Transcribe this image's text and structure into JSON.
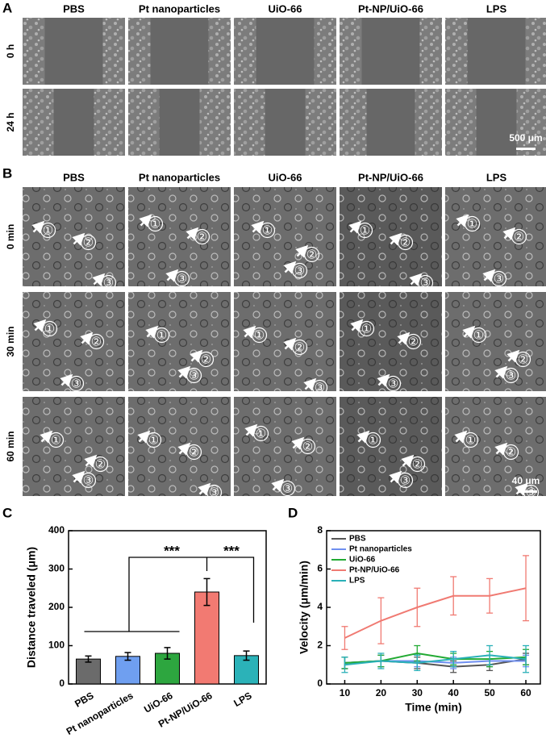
{
  "panels": {
    "panel_a": {
      "label": "A",
      "columns": [
        "PBS",
        "Pt nanoparticles",
        "UiO-66",
        "Pt-NP/UiO-66",
        "LPS"
      ],
      "rows": [
        "0 h",
        "24 h"
      ],
      "scale_bar": "500 μm"
    },
    "panel_b": {
      "label": "B",
      "columns": [
        "PBS",
        "Pt nanoparticles",
        "UiO-66",
        "Pt-NP/UiO-66",
        "LPS"
      ],
      "rows": [
        "0 min",
        "30 min",
        "60 min"
      ],
      "markers": [
        "①",
        "②",
        "③"
      ],
      "scale_bar": "40 μm"
    }
  },
  "chart_data": [
    {
      "type": "bar",
      "label": "C",
      "ylabel": "Distance traveled (μm)",
      "categories": [
        "PBS",
        "Pt nanoparticles",
        "UiO-66",
        "Pt-NP/UiO-66",
        "LPS"
      ],
      "values": [
        65,
        72,
        80,
        240,
        74
      ],
      "errors": [
        8,
        10,
        15,
        35,
        12
      ],
      "colors": [
        "#6b6b6b",
        "#6f9ff0",
        "#2da63f",
        "#f27a72",
        "#2bb2b8"
      ],
      "ylim": [
        0,
        400
      ],
      "yticks": [
        0,
        100,
        200,
        300,
        400
      ],
      "annotations": [
        "***",
        "***"
      ]
    },
    {
      "type": "line",
      "label": "D",
      "xlabel": "Time (min)",
      "ylabel": "Velocity (μm/min)",
      "x": [
        10,
        20,
        30,
        40,
        50,
        60
      ],
      "series": [
        {
          "name": "PBS",
          "color": "#555555",
          "values": [
            1.1,
            1.2,
            1.1,
            0.9,
            1.0,
            1.3
          ],
          "errors": [
            0.3,
            0.3,
            0.3,
            0.3,
            0.3,
            0.3
          ]
        },
        {
          "name": "Pt nanoparticles",
          "color": "#6f8ff0",
          "values": [
            1.1,
            1.2,
            1.2,
            1.1,
            1.2,
            1.2
          ],
          "errors": [
            0.3,
            0.3,
            0.3,
            0.3,
            0.3,
            0.3
          ]
        },
        {
          "name": "UiO-66",
          "color": "#22aa33",
          "values": [
            1.1,
            1.2,
            1.6,
            1.3,
            1.3,
            1.4
          ],
          "errors": [
            0.3,
            0.3,
            0.4,
            0.3,
            0.4,
            0.4
          ]
        },
        {
          "name": "Pt-NP/UiO-66",
          "color": "#f07a72",
          "values": [
            2.4,
            3.3,
            4.0,
            4.6,
            4.6,
            5.0
          ],
          "errors": [
            0.6,
            1.2,
            1.0,
            1.0,
            0.9,
            1.7
          ]
        },
        {
          "name": "LPS",
          "color": "#2ab0b8",
          "values": [
            1.0,
            1.2,
            1.1,
            1.3,
            1.5,
            1.3
          ],
          "errors": [
            0.4,
            0.4,
            0.4,
            0.4,
            0.5,
            0.7
          ]
        }
      ],
      "xlim": [
        5,
        64
      ],
      "xticks": [
        10,
        20,
        30,
        40,
        50,
        60
      ],
      "ylim": [
        0,
        8
      ],
      "yticks": [
        0,
        2,
        4,
        6,
        8
      ],
      "legend": "upper left"
    }
  ]
}
